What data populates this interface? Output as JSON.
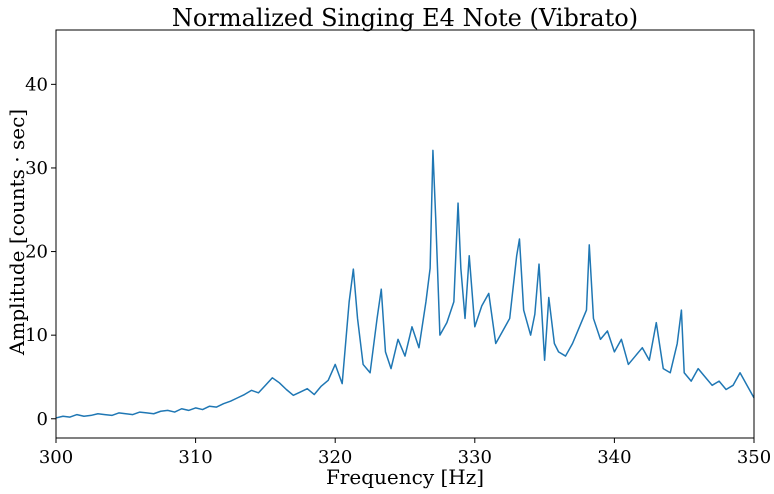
{
  "chart_data": {
    "type": "line",
    "title": "Normalized Singing E4 Note (Vibrato)",
    "xlabel": "Frequency [Hz]",
    "ylabel": "Amplitude [counts · sec]",
    "xlim": [
      300,
      350
    ],
    "ylim": [
      -2.3,
      46.5
    ],
    "xticks": [
      300,
      310,
      320,
      330,
      340,
      350
    ],
    "yticks": [
      0,
      10,
      20,
      30,
      40
    ],
    "grid": false,
    "legend": "none",
    "series": [
      {
        "color": "#1f77b4",
        "x": [
          300.0,
          300.5,
          301.0,
          301.5,
          302.0,
          302.5,
          303.0,
          303.5,
          304.0,
          304.5,
          305.0,
          305.5,
          306.0,
          306.5,
          307.0,
          307.5,
          308.0,
          308.5,
          309.0,
          309.5,
          310.0,
          310.5,
          311.0,
          311.5,
          312.0,
          312.5,
          313.0,
          313.5,
          314.0,
          314.5,
          315.0,
          315.5,
          316.0,
          316.5,
          317.0,
          317.5,
          318.0,
          318.5,
          319.0,
          319.5,
          320.0,
          320.5,
          321.0,
          321.3,
          321.6,
          322.0,
          322.5,
          323.0,
          323.3,
          323.6,
          324.0,
          324.5,
          325.0,
          325.5,
          326.0,
          326.5,
          326.8,
          327.0,
          327.2,
          327.5,
          328.0,
          328.5,
          328.8,
          329.0,
          329.3,
          329.6,
          330.0,
          330.5,
          331.0,
          331.5,
          332.0,
          332.5,
          333.0,
          333.2,
          333.5,
          334.0,
          334.3,
          334.6,
          335.0,
          335.3,
          335.7,
          336.0,
          336.5,
          337.0,
          337.5,
          338.0,
          338.2,
          338.5,
          339.0,
          339.5,
          340.0,
          340.5,
          341.0,
          341.5,
          342.0,
          342.5,
          343.0,
          343.5,
          344.0,
          344.5,
          344.8,
          345.0,
          345.5,
          346.0,
          346.5,
          347.0,
          347.5,
          348.0,
          348.5,
          349.0,
          349.5,
          350.0
        ],
        "y": [
          0.1,
          0.3,
          0.2,
          0.5,
          0.3,
          0.4,
          0.6,
          0.5,
          0.4,
          0.7,
          0.6,
          0.5,
          0.8,
          0.7,
          0.6,
          0.9,
          1.0,
          0.8,
          1.2,
          1.0,
          1.3,
          1.1,
          1.5,
          1.4,
          1.8,
          2.1,
          2.5,
          2.9,
          3.4,
          3.1,
          4.0,
          4.9,
          4.3,
          3.5,
          2.8,
          3.2,
          3.6,
          2.9,
          3.9,
          4.6,
          6.5,
          4.2,
          14.0,
          17.9,
          12.0,
          6.5,
          5.5,
          12.0,
          15.5,
          8.0,
          6.0,
          9.5,
          7.5,
          11.0,
          8.5,
          14.0,
          18.0,
          32.1,
          24.0,
          10.0,
          11.5,
          14.0,
          25.8,
          18.0,
          12.0,
          19.5,
          11.0,
          13.5,
          15.0,
          9.0,
          10.5,
          12.0,
          19.5,
          21.5,
          13.0,
          10.0,
          12.5,
          18.5,
          7.0,
          14.5,
          9.0,
          8.0,
          7.5,
          9.0,
          11.0,
          13.0,
          20.8,
          12.0,
          9.5,
          10.5,
          8.0,
          9.5,
          6.5,
          7.5,
          8.5,
          7.0,
          11.5,
          6.0,
          5.5,
          9.0,
          13.0,
          5.5,
          4.5,
          6.0,
          5.0,
          4.0,
          4.5,
          3.5,
          4.0,
          5.5,
          4.0,
          2.5
        ]
      }
    ]
  }
}
